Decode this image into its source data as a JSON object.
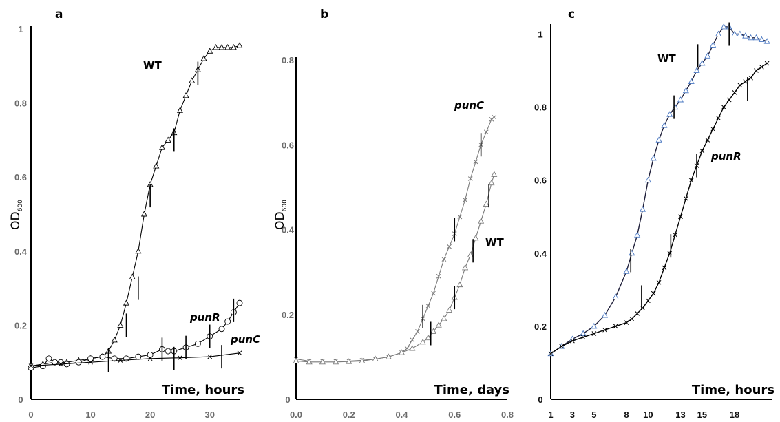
{
  "chart_data": [
    {
      "type": "line",
      "panel_label": "a",
      "xlabel": "Time, hours",
      "ylabel": "OD",
      "ylabel_sub": "600",
      "xlim": [
        0,
        35
      ],
      "ylim": [
        0,
        1
      ],
      "xticks": [
        0,
        10,
        20,
        30
      ],
      "yticks": [
        0,
        0.2,
        0.4,
        0.6,
        0.8,
        1
      ],
      "ytick_labels": [
        "0",
        "0.2",
        "0.4",
        "0.6",
        "0.8",
        "1"
      ],
      "series": [
        {
          "name": "WT",
          "marker": "triangle",
          "color": "#000000",
          "x": [
            0,
            2,
            4,
            6,
            8,
            10,
            12,
            13,
            14,
            15,
            16,
            17,
            18,
            19,
            20,
            21,
            22,
            23,
            24,
            25,
            26,
            27,
            28,
            29,
            30,
            31,
            32,
            33,
            34,
            35
          ],
          "y": [
            0.09,
            0.095,
            0.1,
            0.1,
            0.105,
            0.11,
            0.115,
            0.13,
            0.16,
            0.2,
            0.26,
            0.33,
            0.4,
            0.5,
            0.58,
            0.63,
            0.68,
            0.7,
            0.72,
            0.78,
            0.82,
            0.86,
            0.89,
            0.92,
            0.94,
            0.95,
            0.95,
            0.95,
            0.95,
            0.955
          ],
          "error_x": [
            16,
            18,
            20,
            24,
            28
          ],
          "error_y": [
            0.2,
            0.3,
            0.55,
            0.7,
            0.88
          ]
        },
        {
          "name": "punR",
          "marker": "circle",
          "color": "#000000",
          "x": [
            0,
            2,
            3,
            4,
            5,
            6,
            8,
            10,
            12,
            14,
            16,
            18,
            20,
            22,
            23,
            24,
            26,
            28,
            30,
            32,
            33,
            34,
            35
          ],
          "y": [
            0.085,
            0.09,
            0.11,
            0.1,
            0.1,
            0.095,
            0.1,
            0.11,
            0.115,
            0.11,
            0.11,
            0.115,
            0.12,
            0.135,
            0.13,
            0.13,
            0.14,
            0.15,
            0.17,
            0.19,
            0.21,
            0.235,
            0.26
          ],
          "error_x": [
            22,
            26,
            30,
            34
          ],
          "error_y": [
            0.135,
            0.14,
            0.17,
            0.24
          ]
        },
        {
          "name": "punC",
          "marker": "x",
          "color": "#000000",
          "x": [
            0,
            5,
            10,
            15,
            20,
            25,
            30,
            35
          ],
          "y": [
            0.09,
            0.095,
            0.1,
            0.105,
            0.11,
            0.112,
            0.115,
            0.125
          ],
          "error_x": [
            13,
            24,
            32
          ],
          "error_y": [
            0.105,
            0.11,
            0.115
          ]
        }
      ]
    },
    {
      "type": "line",
      "panel_label": "b",
      "xlabel": "Time, days",
      "ylabel": "OD",
      "ylabel_sub": "600",
      "xlim": [
        0,
        0.8
      ],
      "ylim": [
        0,
        0.8
      ],
      "xticks": [
        0,
        0.2,
        0.4,
        0.6,
        0.8
      ],
      "xtick_labels": [
        "0.0",
        "0.2",
        "0.4",
        "0.6",
        "0.8"
      ],
      "yticks": [
        0,
        0.2,
        0.4,
        0.6,
        0.8
      ],
      "ytick_labels": [
        "0",
        "0.2",
        "0.4",
        "0.6",
        "0.8"
      ],
      "series": [
        {
          "name": "punC",
          "marker": "x",
          "color": "#7a7a7a",
          "x": [
            0,
            0.05,
            0.1,
            0.15,
            0.2,
            0.25,
            0.3,
            0.35,
            0.4,
            0.42,
            0.44,
            0.46,
            0.48,
            0.5,
            0.52,
            0.54,
            0.56,
            0.58,
            0.6,
            0.62,
            0.64,
            0.66,
            0.68,
            0.7,
            0.72,
            0.74,
            0.75
          ],
          "y": [
            0.095,
            0.09,
            0.09,
            0.09,
            0.09,
            0.092,
            0.095,
            0.1,
            0.11,
            0.12,
            0.14,
            0.16,
            0.19,
            0.22,
            0.25,
            0.29,
            0.33,
            0.36,
            0.39,
            0.43,
            0.47,
            0.52,
            0.56,
            0.6,
            0.63,
            0.66,
            0.665
          ],
          "error_x": [
            0.48,
            0.6,
            0.7
          ],
          "error_y": [
            0.195,
            0.4,
            0.6
          ]
        },
        {
          "name": "WT",
          "marker": "triangle",
          "color": "#7a7a7a",
          "x": [
            0,
            0.05,
            0.1,
            0.15,
            0.2,
            0.25,
            0.3,
            0.35,
            0.4,
            0.44,
            0.48,
            0.5,
            0.52,
            0.54,
            0.56,
            0.58,
            0.6,
            0.62,
            0.64,
            0.66,
            0.68,
            0.7,
            0.72,
            0.74,
            0.75
          ],
          "y": [
            0.09,
            0.088,
            0.088,
            0.088,
            0.089,
            0.09,
            0.095,
            0.1,
            0.11,
            0.12,
            0.135,
            0.145,
            0.16,
            0.175,
            0.19,
            0.21,
            0.24,
            0.27,
            0.31,
            0.34,
            0.38,
            0.42,
            0.46,
            0.51,
            0.53
          ],
          "error_x": [
            0.51,
            0.6,
            0.67,
            0.73
          ],
          "error_y": [
            0.155,
            0.24,
            0.35,
            0.48
          ]
        }
      ]
    },
    {
      "type": "line",
      "panel_label": "c",
      "xlabel": "Time, hours",
      "xlim": [
        1,
        21.5
      ],
      "ylim": [
        0,
        1.05
      ],
      "xticks": [
        1,
        3,
        5,
        8,
        10,
        13,
        15,
        18
      ],
      "yticks": [
        0,
        0.2,
        0.4,
        0.6,
        0.8,
        1
      ],
      "ytick_labels": [
        "0",
        "0.2",
        "0.4",
        "0.6",
        "0.8",
        "1"
      ],
      "series": [
        {
          "name": "WT",
          "marker": "triangle",
          "color": "#1f1f3a",
          "marker_color": "#4a78c2",
          "x": [
            1,
            2,
            3,
            4,
            5,
            6,
            7,
            8,
            8.5,
            9,
            9.5,
            10,
            10.5,
            11,
            11.5,
            12,
            12.5,
            13,
            13.5,
            14,
            14.5,
            15,
            15.5,
            16,
            16.5,
            17,
            17.5,
            18,
            18.5,
            19,
            19.5,
            20,
            20.5,
            21
          ],
          "y": [
            0.125,
            0.145,
            0.165,
            0.18,
            0.2,
            0.23,
            0.28,
            0.35,
            0.4,
            0.45,
            0.52,
            0.6,
            0.66,
            0.71,
            0.75,
            0.78,
            0.8,
            0.82,
            0.845,
            0.87,
            0.9,
            0.92,
            0.94,
            0.97,
            1.0,
            1.02,
            1.02,
            1.0,
            1.0,
            0.995,
            0.99,
            0.99,
            0.985,
            0.98
          ],
          "error_x": [
            8.4,
            12.4,
            14.6,
            17.5
          ],
          "error_y": [
            0.38,
            0.8,
            0.94,
            1.0
          ]
        },
        {
          "name": "punR",
          "marker": "x",
          "color": "#000000",
          "x": [
            1,
            2,
            3,
            4,
            5,
            6,
            7,
            8,
            8.5,
            9,
            9.5,
            10,
            10.5,
            11,
            11.5,
            12,
            12.5,
            13,
            13.5,
            14,
            14.5,
            15,
            15.5,
            16,
            16.5,
            17,
            17.5,
            18,
            18.5,
            19,
            19.5,
            20,
            20.5,
            21
          ],
          "y": [
            0.125,
            0.145,
            0.16,
            0.17,
            0.18,
            0.19,
            0.2,
            0.21,
            0.22,
            0.235,
            0.25,
            0.27,
            0.29,
            0.32,
            0.36,
            0.4,
            0.45,
            0.5,
            0.55,
            0.6,
            0.64,
            0.68,
            0.71,
            0.74,
            0.77,
            0.8,
            0.82,
            0.84,
            0.86,
            0.87,
            0.88,
            0.9,
            0.91,
            0.92
          ],
          "error_x": [
            9.4,
            12.1,
            14.5,
            19.2
          ],
          "error_y": [
            0.28,
            0.42,
            0.64,
            0.85
          ]
        }
      ]
    }
  ]
}
